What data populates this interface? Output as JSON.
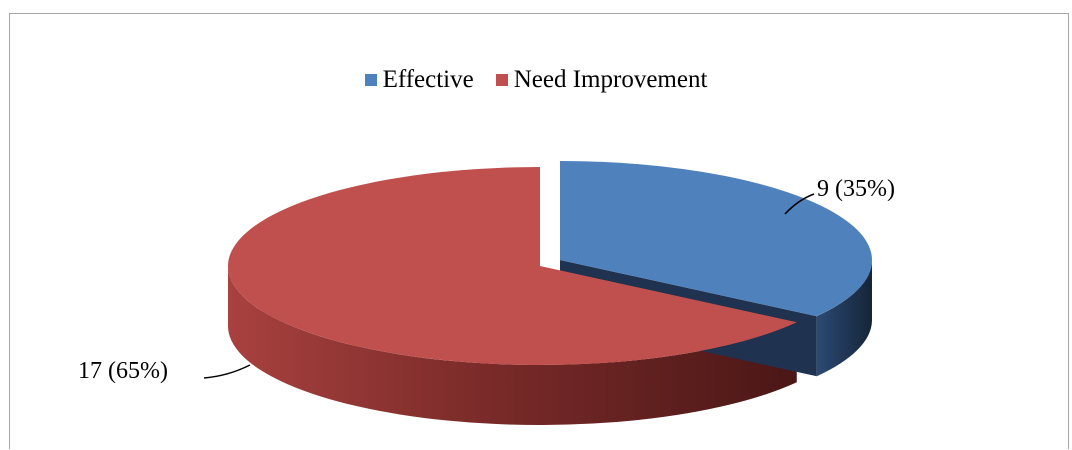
{
  "chart_data": {
    "type": "pie",
    "variant": "3d-exploded",
    "title": "",
    "series": [
      {
        "name": "",
        "slices": [
          {
            "label": "Effective",
            "value": 9,
            "percent": 35,
            "data_label": "9 (35%)",
            "color": "#4f81bd",
            "side_color": "#1f3350"
          },
          {
            "label": "Need Improvement",
            "value": 17,
            "percent": 65,
            "data_label": "17 (65%)",
            "color": "#c0504d",
            "side_color": "#6e2422"
          }
        ]
      }
    ],
    "legend": {
      "position": "top",
      "entries": [
        {
          "label": "Effective",
          "color": "#4f81bd"
        },
        {
          "label": "Need Improvement",
          "color": "#c0504d"
        }
      ]
    },
    "exploded_slice": "Effective"
  }
}
